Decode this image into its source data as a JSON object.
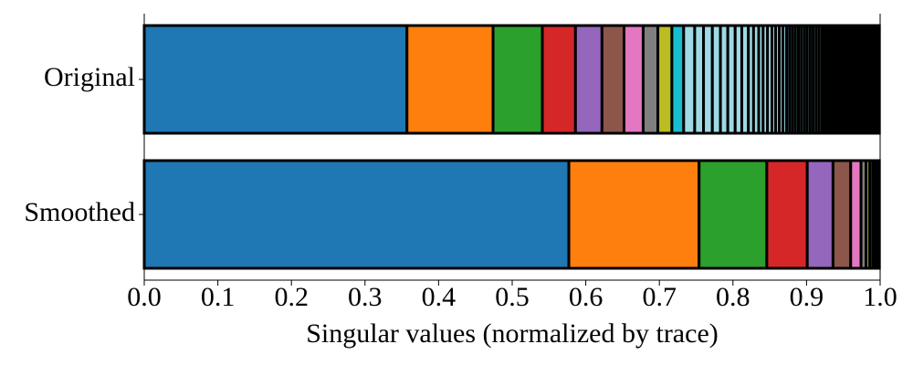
{
  "chart_data": {
    "type": "stacked-barh",
    "xlabel": "Singular values (normalized by trace)",
    "categories": [
      "Original",
      "Smoothed"
    ],
    "colors": [
      "#1f77b4",
      "#ff7f0e",
      "#2ca02c",
      "#d62728",
      "#9467bd",
      "#8c564b",
      "#e377c2",
      "#7f7f7f",
      "#bcbd22",
      "#17becf",
      "#9edae5"
    ],
    "bars": [
      [
        0.357,
        0.117,
        0.067,
        0.045,
        0.036,
        0.03,
        0.026,
        0.02,
        0.019,
        0.016,
        0.015,
        0.012,
        0.012,
        0.011,
        0.01,
        0.01,
        0.009,
        0.009,
        0.007,
        0.007,
        0.006,
        0.006,
        0.006,
        0.005,
        0.005,
        0.005,
        0.005,
        0.004,
        0.004,
        0.004,
        0.004,
        0.004,
        0.004,
        0.004,
        0.004,
        0.004,
        0.004,
        0.004,
        0.004,
        0.002,
        0.002,
        0.002,
        0.002,
        0.002,
        0.002,
        0.002,
        0.002,
        0.002,
        0.002,
        0.002,
        0.002,
        0.002,
        0.002,
        0.002,
        0.002,
        0.002,
        0.002,
        0.002,
        0.002,
        0.002,
        0.002,
        0.002,
        0.002,
        0.002,
        0.002,
        0.002,
        0.002,
        0.002,
        0.002,
        0.002,
        0.002,
        0.002,
        0.002,
        0.002,
        0.002,
        0.002,
        0.002,
        0.002
      ],
      [
        0.577,
        0.177,
        0.092,
        0.055,
        0.035,
        0.024,
        0.014,
        0.007,
        0.005,
        0.004,
        0.003,
        0.002,
        0.002,
        0.002
      ]
    ],
    "xlim": [
      0,
      1
    ],
    "xticks": [
      {
        "value": 0,
        "label": "0.0"
      },
      0.1,
      0.2,
      0.3,
      0.4,
      0.5,
      0.6,
      0.7,
      0.8,
      0.9,
      {
        "value": 1,
        "label": "1.0"
      }
    ]
  }
}
